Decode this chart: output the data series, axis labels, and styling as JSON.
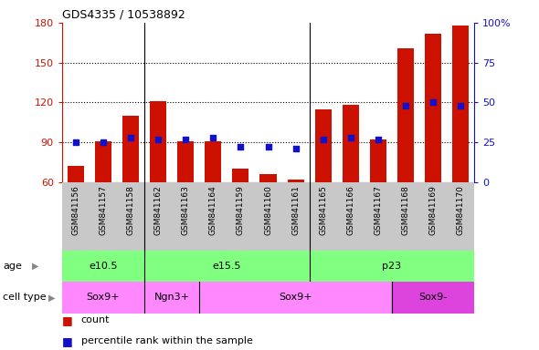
{
  "title": "GDS4335 / 10538892",
  "samples": [
    "GSM841156",
    "GSM841157",
    "GSM841158",
    "GSM841162",
    "GSM841163",
    "GSM841164",
    "GSM841159",
    "GSM841160",
    "GSM841161",
    "GSM841165",
    "GSM841166",
    "GSM841167",
    "GSM841168",
    "GSM841169",
    "GSM841170"
  ],
  "counts": [
    72,
    91,
    110,
    121,
    91,
    91,
    70,
    66,
    62,
    115,
    118,
    92,
    161,
    172,
    178
  ],
  "percentile_ranks": [
    25,
    25,
    28,
    27,
    27,
    28,
    22,
    22,
    21,
    27,
    28,
    27,
    48,
    50,
    48
  ],
  "ylim_left": [
    60,
    180
  ],
  "ylim_right": [
    0,
    100
  ],
  "yticks_left": [
    60,
    90,
    120,
    150,
    180
  ],
  "yticks_right": [
    0,
    25,
    50,
    75,
    100
  ],
  "age_groups": [
    {
      "label": "e10.5",
      "start": 0,
      "end": 3
    },
    {
      "label": "e15.5",
      "start": 3,
      "end": 9
    },
    {
      "label": "p23",
      "start": 9,
      "end": 15
    }
  ],
  "cell_type_groups": [
    {
      "label": "Sox9+",
      "start": 0,
      "end": 3
    },
    {
      "label": "Ngn3+",
      "start": 3,
      "end": 5
    },
    {
      "label": "Sox9+",
      "start": 5,
      "end": 12
    },
    {
      "label": "Sox9-",
      "start": 12,
      "end": 15
    }
  ],
  "age_color": "#80FF80",
  "cell_type_color_light": "#FF88FF",
  "cell_type_color_dark": "#DD44DD",
  "bar_color": "#CC1100",
  "percentile_color": "#1111CC",
  "tick_bg_color": "#C8C8C8",
  "dotted_line_color": "#000000",
  "left_label_color": "#888888"
}
